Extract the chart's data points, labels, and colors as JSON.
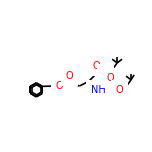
{
  "bg": "#ffffff",
  "bond_color": "#000000",
  "atom_colors": {
    "O": "#ff0000",
    "N": "#0000ff",
    "C": "#000000",
    "H": "#000000"
  },
  "line_width": 1.2,
  "font_size": 7
}
